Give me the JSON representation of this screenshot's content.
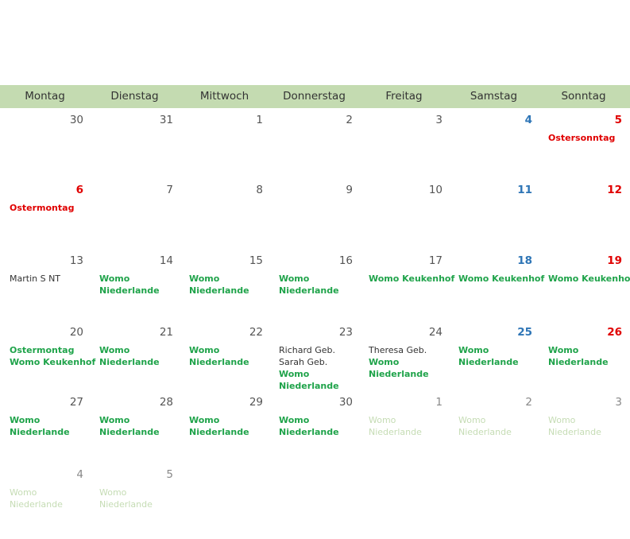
{
  "colors": {
    "header_bg": "#c4dbb1",
    "event_green": "#1fa34a",
    "holiday_red": "#e00000",
    "saturday_blue": "#2e75b6",
    "faint_green": "#c5dcb4"
  },
  "weekdays": [
    "Montag",
    "Dienstag",
    "Mittwoch",
    "Donnerstag",
    "Freitag",
    "Samstag",
    "Sonntag"
  ],
  "weeks": [
    [
      {
        "day": "30",
        "style": "normal",
        "events": []
      },
      {
        "day": "31",
        "style": "normal",
        "events": []
      },
      {
        "day": "1",
        "style": "normal",
        "events": []
      },
      {
        "day": "2",
        "style": "normal",
        "events": []
      },
      {
        "day": "3",
        "style": "normal",
        "events": []
      },
      {
        "day": "4",
        "style": "blue",
        "events": []
      },
      {
        "day": "5",
        "style": "red",
        "events": [
          {
            "text": "Ostersonntag",
            "kind": "red"
          }
        ]
      }
    ],
    [
      {
        "day": "6",
        "style": "red",
        "events": [
          {
            "text": "Ostermontag",
            "kind": "red"
          }
        ]
      },
      {
        "day": "7",
        "style": "normal",
        "events": []
      },
      {
        "day": "8",
        "style": "normal",
        "events": []
      },
      {
        "day": "9",
        "style": "normal",
        "events": []
      },
      {
        "day": "10",
        "style": "normal",
        "events": []
      },
      {
        "day": "11",
        "style": "blue",
        "events": []
      },
      {
        "day": "12",
        "style": "red",
        "events": []
      }
    ],
    [
      {
        "day": "13",
        "style": "normal",
        "events": [
          {
            "text": "Martin S NT",
            "kind": "plain"
          }
        ]
      },
      {
        "day": "14",
        "style": "normal",
        "events": [
          {
            "text": "Womo",
            "kind": "green"
          },
          {
            "text": "Niederlande",
            "kind": "green"
          }
        ]
      },
      {
        "day": "15",
        "style": "normal",
        "events": [
          {
            "text": "Womo",
            "kind": "green"
          },
          {
            "text": "Niederlande",
            "kind": "green"
          }
        ]
      },
      {
        "day": "16",
        "style": "normal",
        "events": [
          {
            "text": "Womo",
            "kind": "green"
          },
          {
            "text": "Niederlande",
            "kind": "green"
          }
        ]
      },
      {
        "day": "17",
        "style": "normal",
        "events": [
          {
            "text": "Womo Keukenhof",
            "kind": "green"
          }
        ]
      },
      {
        "day": "18",
        "style": "blue",
        "events": [
          {
            "text": "Womo Keukenhof",
            "kind": "green"
          }
        ]
      },
      {
        "day": "19",
        "style": "red",
        "events": [
          {
            "text": "Womo Keukenhof",
            "kind": "green"
          }
        ]
      }
    ],
    [
      {
        "day": "20",
        "style": "normal",
        "events": [
          {
            "text": "Ostermontag",
            "kind": "green"
          },
          {
            "text": "Womo Keukenhof",
            "kind": "green"
          }
        ]
      },
      {
        "day": "21",
        "style": "normal",
        "events": [
          {
            "text": "Womo",
            "kind": "green"
          },
          {
            "text": "Niederlande",
            "kind": "green"
          }
        ]
      },
      {
        "day": "22",
        "style": "normal",
        "events": [
          {
            "text": "Womo",
            "kind": "green"
          },
          {
            "text": "Niederlande",
            "kind": "green"
          }
        ]
      },
      {
        "day": "23",
        "style": "normal",
        "events": [
          {
            "text": "Richard Geb.",
            "kind": "plain"
          },
          {
            "text": "Sarah Geb.",
            "kind": "plain"
          },
          {
            "text": "Womo",
            "kind": "green"
          },
          {
            "text": "Niederlande",
            "kind": "green"
          }
        ]
      },
      {
        "day": "24",
        "style": "normal",
        "events": [
          {
            "text": "Theresa Geb.",
            "kind": "plain"
          },
          {
            "text": "Womo",
            "kind": "green"
          },
          {
            "text": "Niederlande",
            "kind": "green"
          }
        ]
      },
      {
        "day": "25",
        "style": "blue",
        "events": [
          {
            "text": "Womo",
            "kind": "green"
          },
          {
            "text": "Niederlande",
            "kind": "green"
          }
        ]
      },
      {
        "day": "26",
        "style": "red",
        "events": [
          {
            "text": "Womo",
            "kind": "green"
          },
          {
            "text": "Niederlande",
            "kind": "green"
          }
        ]
      }
    ],
    [
      {
        "day": "27",
        "style": "normal",
        "events": [
          {
            "text": "Womo",
            "kind": "green"
          },
          {
            "text": "Niederlande",
            "kind": "green"
          }
        ]
      },
      {
        "day": "28",
        "style": "normal",
        "events": [
          {
            "text": "Womo",
            "kind": "green"
          },
          {
            "text": "Niederlande",
            "kind": "green"
          }
        ]
      },
      {
        "day": "29",
        "style": "normal",
        "events": [
          {
            "text": "Womo",
            "kind": "green"
          },
          {
            "text": "Niederlande",
            "kind": "green"
          }
        ]
      },
      {
        "day": "30",
        "style": "normal",
        "events": [
          {
            "text": "Womo",
            "kind": "green"
          },
          {
            "text": "Niederlande",
            "kind": "green"
          }
        ]
      },
      {
        "day": "1",
        "style": "muted",
        "events": [
          {
            "text": "Womo",
            "kind": "faint"
          },
          {
            "text": "Niederlande",
            "kind": "faint"
          }
        ]
      },
      {
        "day": "2",
        "style": "muted",
        "events": [
          {
            "text": "Womo",
            "kind": "faint"
          },
          {
            "text": "Niederlande",
            "kind": "faint"
          }
        ]
      },
      {
        "day": "3",
        "style": "muted",
        "events": [
          {
            "text": "Womo",
            "kind": "faint"
          },
          {
            "text": "Niederlande",
            "kind": "faint"
          }
        ]
      }
    ],
    [
      {
        "day": "4",
        "style": "muted",
        "events": [
          {
            "text": "Womo",
            "kind": "faint"
          },
          {
            "text": "Niederlande",
            "kind": "faint"
          }
        ]
      },
      {
        "day": "5",
        "style": "muted",
        "events": [
          {
            "text": "Womo",
            "kind": "faint"
          },
          {
            "text": "Niederlande",
            "kind": "faint"
          }
        ]
      },
      {
        "day": "",
        "style": "empty",
        "events": []
      },
      {
        "day": "",
        "style": "empty",
        "events": []
      },
      {
        "day": "",
        "style": "empty",
        "events": []
      },
      {
        "day": "",
        "style": "empty",
        "events": []
      },
      {
        "day": "",
        "style": "empty",
        "events": []
      }
    ]
  ]
}
